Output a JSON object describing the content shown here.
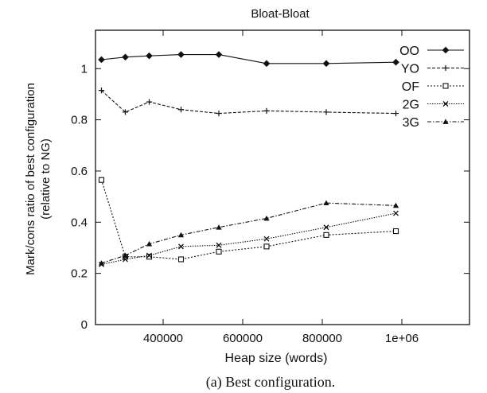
{
  "caption": "(a) Best configuration.",
  "chart_data": {
    "type": "line",
    "title": "Bloat-Bloat",
    "xlabel": "Heap size (words)",
    "ylabel": "Mark/cons ratio of best configuration\n(relative to NG)",
    "xlim": [
      230000,
      1170000
    ],
    "ylim": [
      0,
      1.15
    ],
    "xticks": [
      400000,
      600000,
      800000,
      1000000
    ],
    "xtick_labels": [
      "400000",
      "600000",
      "800000",
      "1e+06"
    ],
    "yticks": [
      0,
      0.2,
      0.4,
      0.6,
      0.8,
      1
    ],
    "ytick_labels": [
      "0",
      "0.2",
      "0.4",
      "0.6",
      "0.8",
      "1"
    ],
    "grid": false,
    "legend_position": "top-right",
    "series": [
      {
        "name": "OO",
        "marker": "diamond",
        "dash": "solid",
        "points": [
          [
            245000,
            1.035
          ],
          [
            305000,
            1.045
          ],
          [
            365000,
            1.05
          ],
          [
            445000,
            1.055
          ],
          [
            540000,
            1.055
          ],
          [
            660000,
            1.02
          ],
          [
            810000,
            1.02
          ],
          [
            985000,
            1.025
          ]
        ]
      },
      {
        "name": "YO",
        "marker": "plus",
        "dash": "dash",
        "points": [
          [
            245000,
            0.915
          ],
          [
            305000,
            0.83
          ],
          [
            365000,
            0.87
          ],
          [
            445000,
            0.84
          ],
          [
            540000,
            0.825
          ],
          [
            660000,
            0.835
          ],
          [
            810000,
            0.83
          ],
          [
            985000,
            0.825
          ]
        ]
      },
      {
        "name": "OF",
        "marker": "square",
        "dash": "dot",
        "points": [
          [
            245000,
            0.565
          ],
          [
            305000,
            0.265
          ],
          [
            365000,
            0.265
          ],
          [
            445000,
            0.255
          ],
          [
            540000,
            0.285
          ],
          [
            660000,
            0.305
          ],
          [
            810000,
            0.35
          ],
          [
            985000,
            0.365
          ]
        ]
      },
      {
        "name": "2G",
        "marker": "cross",
        "dash": "fine",
        "points": [
          [
            245000,
            0.235
          ],
          [
            305000,
            0.255
          ],
          [
            365000,
            0.27
          ],
          [
            445000,
            0.305
          ],
          [
            540000,
            0.31
          ],
          [
            660000,
            0.335
          ],
          [
            810000,
            0.38
          ],
          [
            985000,
            0.435
          ]
        ]
      },
      {
        "name": "3G",
        "marker": "triangle",
        "dash": "dashdot",
        "points": [
          [
            245000,
            0.24
          ],
          [
            305000,
            0.27
          ],
          [
            365000,
            0.315
          ],
          [
            445000,
            0.35
          ],
          [
            540000,
            0.38
          ],
          [
            660000,
            0.415
          ],
          [
            810000,
            0.475
          ],
          [
            985000,
            0.465
          ]
        ]
      }
    ]
  }
}
